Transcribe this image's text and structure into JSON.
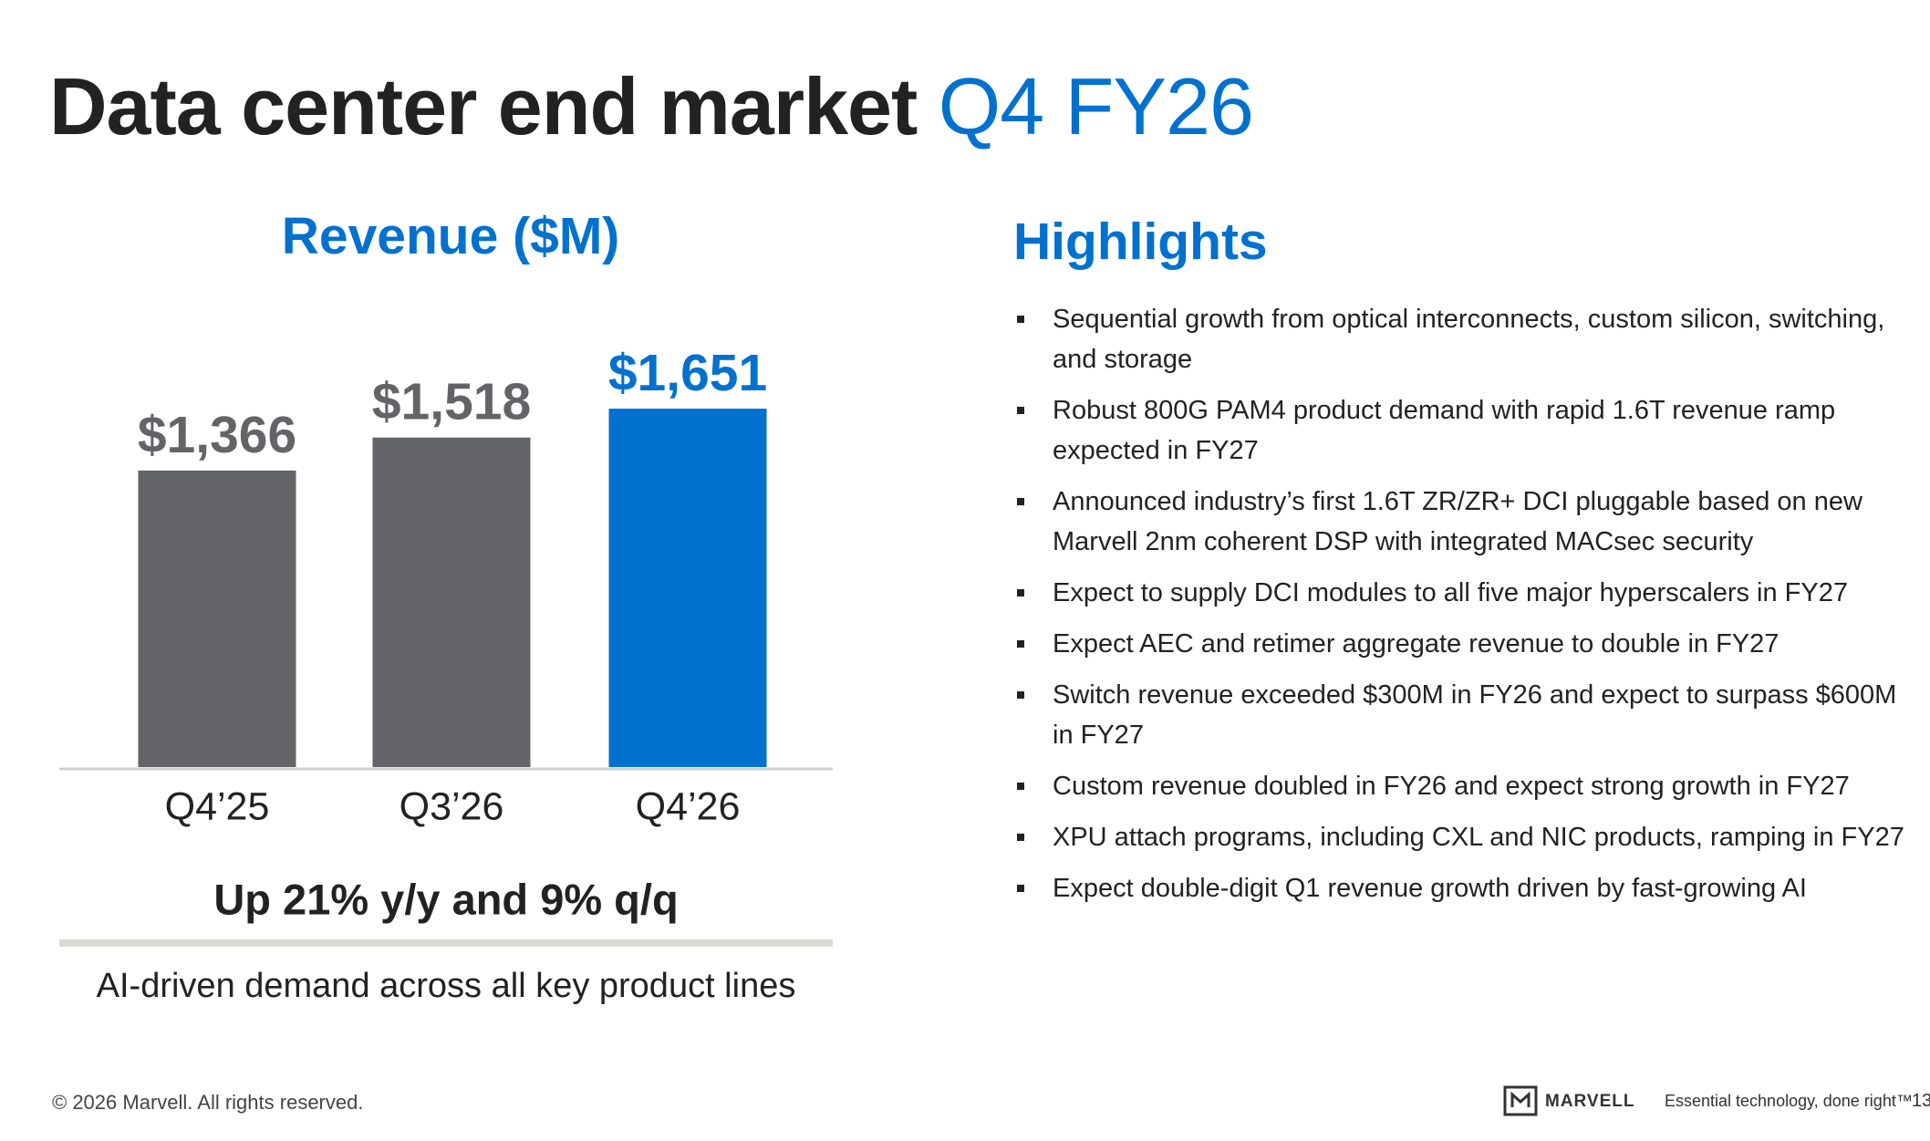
{
  "title": {
    "text": "Data center end market",
    "accent": "Q4 FY26"
  },
  "chart_data": {
    "type": "bar",
    "title": "Revenue ($M)",
    "categories": [
      "Q4’25",
      "Q3’26",
      "Q4’26"
    ],
    "values": [
      1366,
      1518,
      1651
    ],
    "value_labels": [
      "$1,366",
      "$1,518",
      "$1,651"
    ],
    "colors": [
      "#636468",
      "#636468",
      "#0071ce"
    ]
  },
  "summary": {
    "headline": "Up 21% y/y and 9% q/q",
    "caption": "AI-driven demand across all key product lines"
  },
  "highlights": {
    "title": "Highlights",
    "items": [
      "Sequential growth from optical interconnects, custom silicon, switching, and storage",
      "Robust 800G PAM4 product demand with rapid 1.6T revenue ramp expected in FY27",
      "Announced industry’s first 1.6T ZR/ZR+ DCI pluggable based on new Marvell 2nm coherent DSP with integrated MACsec security",
      "Expect to supply DCI modules to all five major hyperscalers in FY27",
      "Expect AEC and retimer aggregate revenue to double in FY27",
      "Switch revenue exceeded $300M in FY26 and expect to surpass $600M in FY27",
      "Custom revenue doubled in FY26 and expect strong growth in FY27",
      "XPU attach programs, including CXL and NIC products, ramping in FY27",
      "Expect double-digit Q1 revenue growth driven by fast-growing AI"
    ]
  },
  "footer": {
    "copyright": "© 2026 Marvell. All rights reserved.",
    "brand": "MARVELL",
    "tagline": "Essential technology, done right™",
    "page": "13"
  }
}
